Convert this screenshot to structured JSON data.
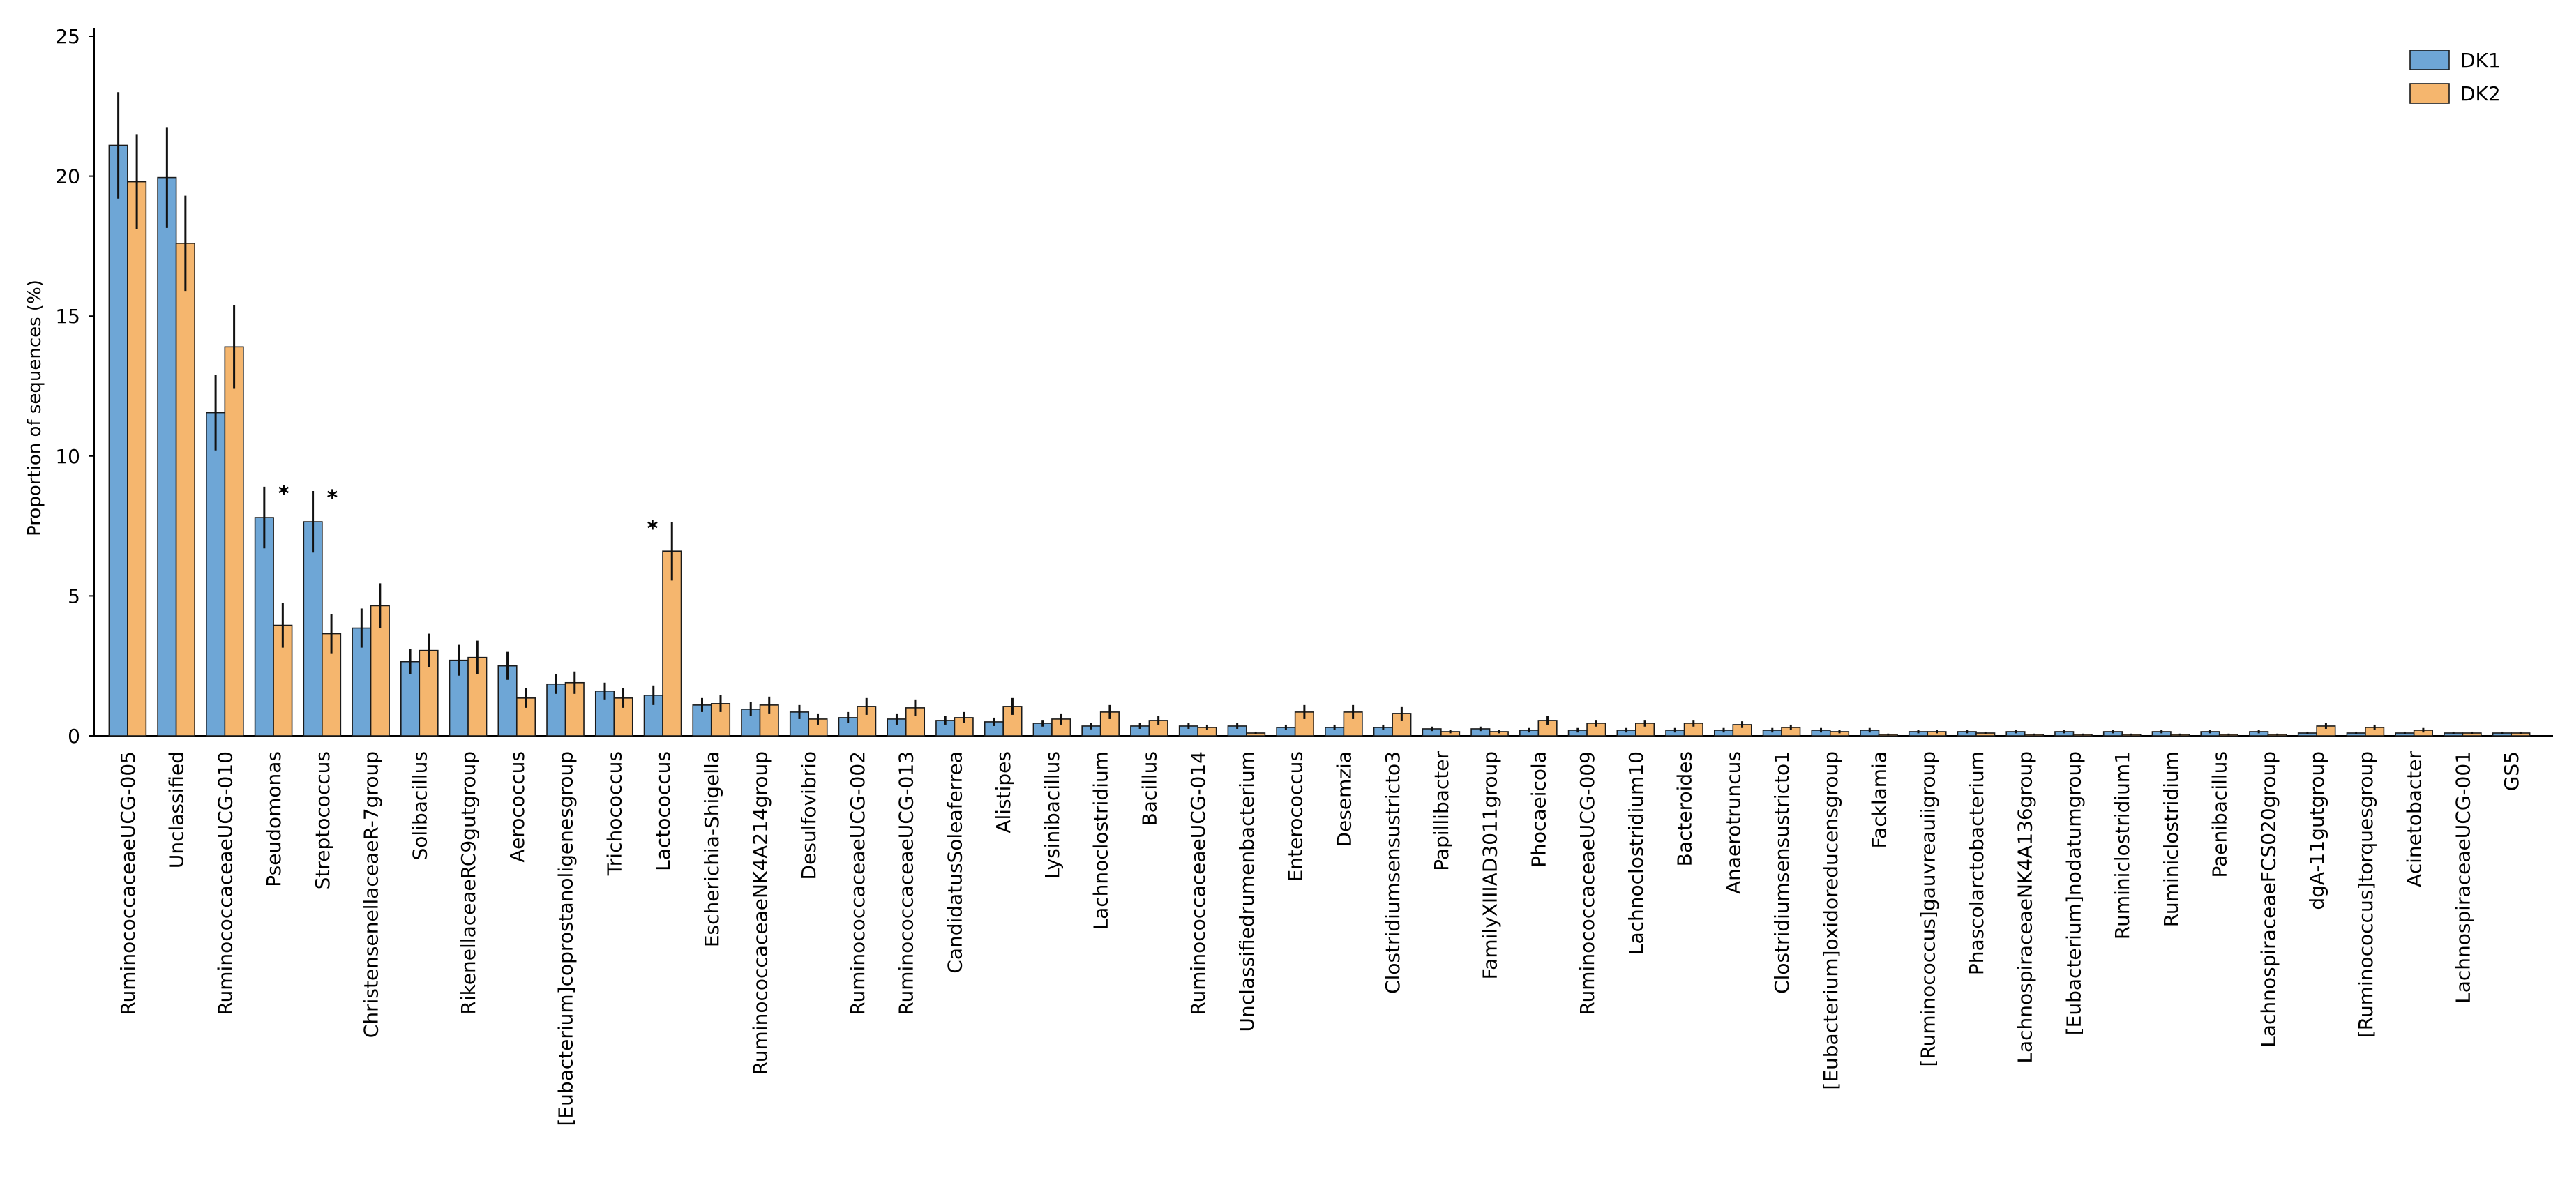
{
  "chart_data": {
    "type": "bar",
    "ylabel": "Proportion of sequences (%)",
    "xlabel": "",
    "ylim": [
      0,
      25
    ],
    "yticks": [
      0,
      5,
      10,
      15,
      20,
      25
    ],
    "grid": false,
    "legend_position": "top-right",
    "categories": [
      "RuminococcaceaeUCG-005",
      "Unclassified",
      "RuminococcaceaeUCG-010",
      "Pseudomonas",
      "Streptococcus",
      "ChristensenellaceaeR-7group",
      "Solibacillus",
      "RikenellaceaeRC9gutgroup",
      "Aerococcus",
      "[Eubacterium]coprostanoligenesgroup",
      "Trichococcus",
      "Lactococcus",
      "Escherichia-Shigella",
      "RuminococcaceaeNK4A214group",
      "Desulfovibrio",
      "RuminococcaceaeUCG-002",
      "RuminococcaceaeUCG-013",
      "CandidatusSoleaferrea",
      "Alistipes",
      "Lysinibacillus",
      "Lachnoclostridium",
      "Bacillus",
      "RuminococcaceaeUCG-014",
      "Unclassifiedrumenbacterium",
      "Enterococcus",
      "Desemzia",
      "Clostridiumsensustricto3",
      "Papillibacter",
      "FamilyXIIIAD3011group",
      "Phocaeicola",
      "RuminococcaceaeUCG-009",
      "Lachnoclostridium10",
      "Bacteroides",
      "Anaerotruncus",
      "Clostridiumsensustricto1",
      "[Eubacterium]oxidoreducensgroup",
      "Facklamia",
      "[Ruminococcus]gauvreauiigroup",
      "Phascolarctobacterium",
      "LachnospiraceaeNK4A136group",
      "[Eubacterium]nodatumgroup",
      "Ruminiclostridium1",
      "Ruminiclostridium",
      "Paenibacillus",
      "LachnospiraceaeFCS020group",
      "dgA-11gutgroup",
      "[Ruminococcus]torquesgroup",
      "Acinetobacter",
      "LachnospiraceaeUCG-001",
      "GS5"
    ],
    "series": [
      {
        "name": "DK1",
        "color": "#6ea6d6",
        "values": [
          21.1,
          19.95,
          11.55,
          7.8,
          7.65,
          3.85,
          2.65,
          2.7,
          2.5,
          1.85,
          1.6,
          1.45,
          1.1,
          0.95,
          0.85,
          0.65,
          0.6,
          0.55,
          0.5,
          0.45,
          0.35,
          0.35,
          0.35,
          0.35,
          0.3,
          0.3,
          0.3,
          0.25,
          0.25,
          0.2,
          0.2,
          0.2,
          0.2,
          0.2,
          0.2,
          0.2,
          0.2,
          0.15,
          0.15,
          0.15,
          0.15,
          0.15,
          0.15,
          0.15,
          0.15,
          0.1,
          0.1,
          0.1,
          0.1,
          0.1
        ],
        "errors": [
          1.9,
          1.8,
          1.35,
          1.1,
          1.1,
          0.7,
          0.45,
          0.55,
          0.5,
          0.35,
          0.3,
          0.35,
          0.25,
          0.25,
          0.25,
          0.2,
          0.2,
          0.15,
          0.15,
          0.12,
          0.12,
          0.1,
          0.1,
          0.1,
          0.1,
          0.1,
          0.1,
          0.08,
          0.08,
          0.08,
          0.08,
          0.08,
          0.08,
          0.08,
          0.08,
          0.08,
          0.08,
          0.06,
          0.06,
          0.06,
          0.06,
          0.06,
          0.06,
          0.06,
          0.06,
          0.05,
          0.05,
          0.05,
          0.05,
          0.05
        ]
      },
      {
        "name": "DK2",
        "color": "#f5b66e",
        "values": [
          19.8,
          17.6,
          13.9,
          3.95,
          3.65,
          4.65,
          3.05,
          2.8,
          1.35,
          1.9,
          1.35,
          6.6,
          1.15,
          1.1,
          0.6,
          1.05,
          1.0,
          0.65,
          1.05,
          0.6,
          0.85,
          0.55,
          0.3,
          0.1,
          0.85,
          0.85,
          0.8,
          0.15,
          0.15,
          0.55,
          0.45,
          0.45,
          0.45,
          0.4,
          0.3,
          0.15,
          0.05,
          0.15,
          0.1,
          0.05,
          0.05,
          0.05,
          0.05,
          0.05,
          0.05,
          0.35,
          0.3,
          0.2,
          0.1,
          0.1
        ],
        "errors": [
          1.7,
          1.7,
          1.5,
          0.8,
          0.7,
          0.8,
          0.6,
          0.6,
          0.35,
          0.4,
          0.35,
          1.05,
          0.3,
          0.3,
          0.2,
          0.3,
          0.3,
          0.2,
          0.3,
          0.2,
          0.25,
          0.15,
          0.1,
          0.05,
          0.25,
          0.25,
          0.25,
          0.06,
          0.06,
          0.15,
          0.12,
          0.12,
          0.12,
          0.12,
          0.1,
          0.06,
          0.03,
          0.06,
          0.05,
          0.03,
          0.03,
          0.03,
          0.03,
          0.03,
          0.03,
          0.1,
          0.1,
          0.08,
          0.05,
          0.05
        ]
      }
    ],
    "significance_markers": [
      {
        "category": "Pseudomonas",
        "label": "*"
      },
      {
        "category": "Streptococcus",
        "label": "*"
      },
      {
        "category": "Lactococcus",
        "label": "*"
      }
    ]
  }
}
